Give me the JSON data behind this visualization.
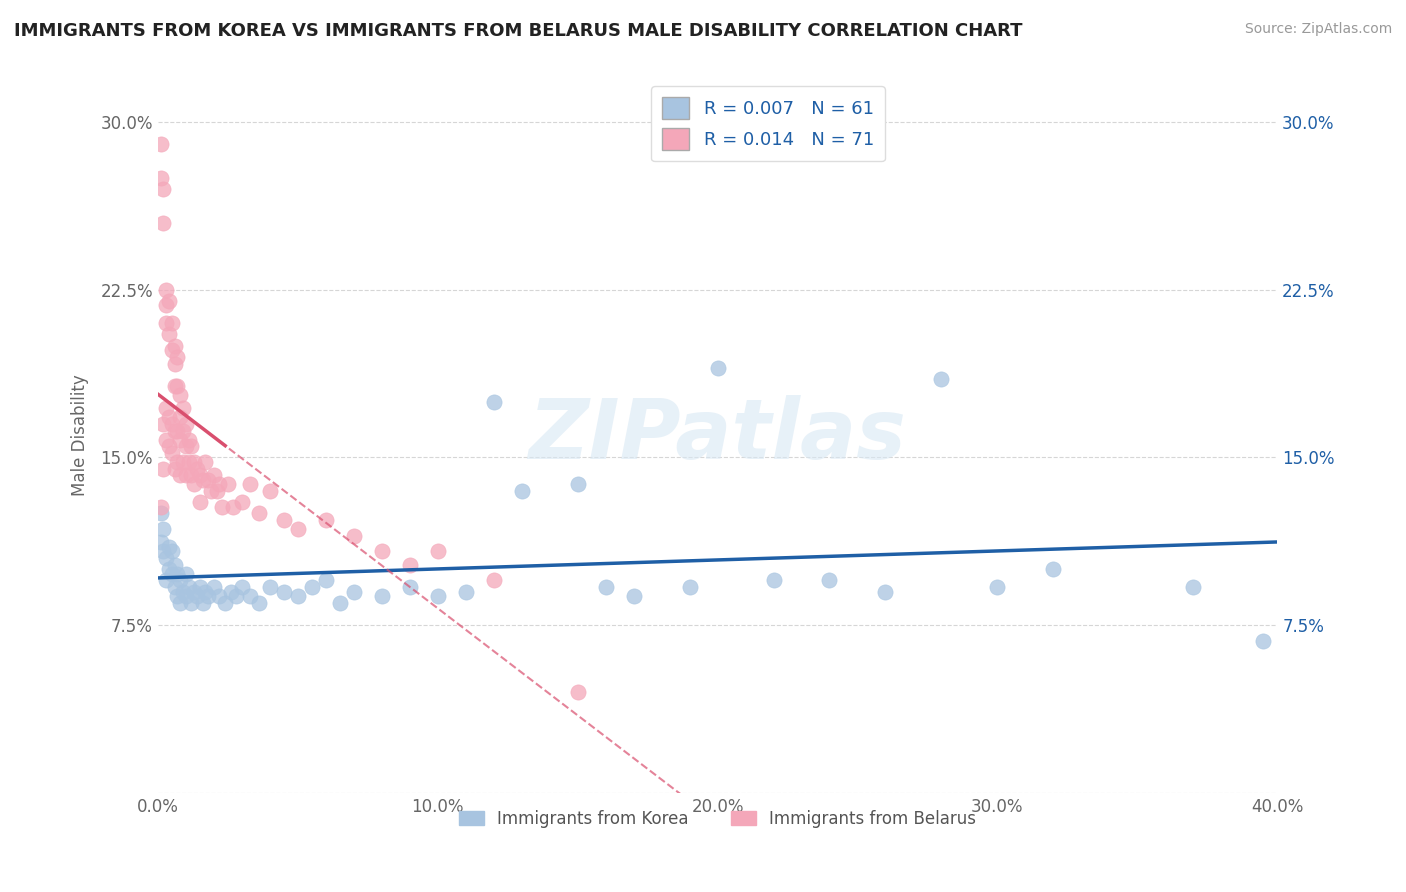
{
  "title": "IMMIGRANTS FROM KOREA VS IMMIGRANTS FROM BELARUS MALE DISABILITY CORRELATION CHART",
  "source": "Source: ZipAtlas.com",
  "ylabel": "Male Disability",
  "xlim": [
    0.0,
    0.4
  ],
  "ylim": [
    0.0,
    0.32
  ],
  "xticks": [
    0.0,
    0.1,
    0.2,
    0.3,
    0.4
  ],
  "yticks": [
    0.0,
    0.075,
    0.15,
    0.225,
    0.3
  ],
  "xtick_labels": [
    "0.0%",
    "10.0%",
    "20.0%",
    "30.0%",
    "40.0%"
  ],
  "ytick_labels": [
    "",
    "7.5%",
    "15.0%",
    "22.5%",
    "30.0%"
  ],
  "korea_R": 0.007,
  "korea_N": 61,
  "belarus_R": 0.014,
  "belarus_N": 71,
  "korea_color": "#a8c4e0",
  "belarus_color": "#f4a7b9",
  "korea_line_color": "#1f5fa6",
  "belarus_line_color": "#d94f6e",
  "watermark": "ZIPatlas",
  "korea_points_x": [
    0.001,
    0.001,
    0.002,
    0.002,
    0.003,
    0.003,
    0.004,
    0.004,
    0.005,
    0.005,
    0.006,
    0.006,
    0.007,
    0.007,
    0.008,
    0.008,
    0.009,
    0.01,
    0.01,
    0.011,
    0.012,
    0.013,
    0.014,
    0.015,
    0.016,
    0.017,
    0.018,
    0.02,
    0.022,
    0.024,
    0.026,
    0.028,
    0.03,
    0.033,
    0.036,
    0.04,
    0.045,
    0.05,
    0.055,
    0.06,
    0.065,
    0.07,
    0.08,
    0.09,
    0.1,
    0.11,
    0.12,
    0.13,
    0.15,
    0.16,
    0.17,
    0.19,
    0.2,
    0.22,
    0.24,
    0.26,
    0.28,
    0.3,
    0.32,
    0.37,
    0.395
  ],
  "korea_points_y": [
    0.125,
    0.112,
    0.108,
    0.118,
    0.095,
    0.105,
    0.1,
    0.11,
    0.098,
    0.108,
    0.092,
    0.102,
    0.088,
    0.098,
    0.085,
    0.095,
    0.09,
    0.088,
    0.098,
    0.092,
    0.085,
    0.09,
    0.088,
    0.092,
    0.085,
    0.09,
    0.088,
    0.092,
    0.088,
    0.085,
    0.09,
    0.088,
    0.092,
    0.088,
    0.085,
    0.092,
    0.09,
    0.088,
    0.092,
    0.095,
    0.085,
    0.09,
    0.088,
    0.092,
    0.088,
    0.09,
    0.175,
    0.135,
    0.138,
    0.092,
    0.088,
    0.092,
    0.19,
    0.095,
    0.095,
    0.09,
    0.185,
    0.092,
    0.1,
    0.092,
    0.068
  ],
  "belarus_points_x": [
    0.001,
    0.001,
    0.001,
    0.002,
    0.002,
    0.002,
    0.002,
    0.003,
    0.003,
    0.003,
    0.003,
    0.003,
    0.004,
    0.004,
    0.004,
    0.004,
    0.005,
    0.005,
    0.005,
    0.005,
    0.006,
    0.006,
    0.006,
    0.006,
    0.006,
    0.007,
    0.007,
    0.007,
    0.007,
    0.008,
    0.008,
    0.008,
    0.008,
    0.009,
    0.009,
    0.009,
    0.01,
    0.01,
    0.01,
    0.011,
    0.011,
    0.012,
    0.012,
    0.013,
    0.013,
    0.014,
    0.015,
    0.015,
    0.016,
    0.017,
    0.018,
    0.019,
    0.02,
    0.021,
    0.022,
    0.023,
    0.025,
    0.027,
    0.03,
    0.033,
    0.036,
    0.04,
    0.045,
    0.05,
    0.06,
    0.07,
    0.08,
    0.09,
    0.1,
    0.12,
    0.15
  ],
  "belarus_points_y": [
    0.29,
    0.275,
    0.128,
    0.27,
    0.255,
    0.165,
    0.145,
    0.225,
    0.218,
    0.21,
    0.172,
    0.158,
    0.22,
    0.205,
    0.168,
    0.155,
    0.21,
    0.198,
    0.165,
    0.152,
    0.2,
    0.192,
    0.182,
    0.162,
    0.145,
    0.195,
    0.182,
    0.162,
    0.148,
    0.178,
    0.168,
    0.158,
    0.142,
    0.172,
    0.162,
    0.148,
    0.165,
    0.155,
    0.142,
    0.158,
    0.148,
    0.155,
    0.142,
    0.148,
    0.138,
    0.145,
    0.142,
    0.13,
    0.14,
    0.148,
    0.14,
    0.135,
    0.142,
    0.135,
    0.138,
    0.128,
    0.138,
    0.128,
    0.13,
    0.138,
    0.125,
    0.135,
    0.122,
    0.118,
    0.122,
    0.115,
    0.108,
    0.102,
    0.108,
    0.095,
    0.045
  ]
}
